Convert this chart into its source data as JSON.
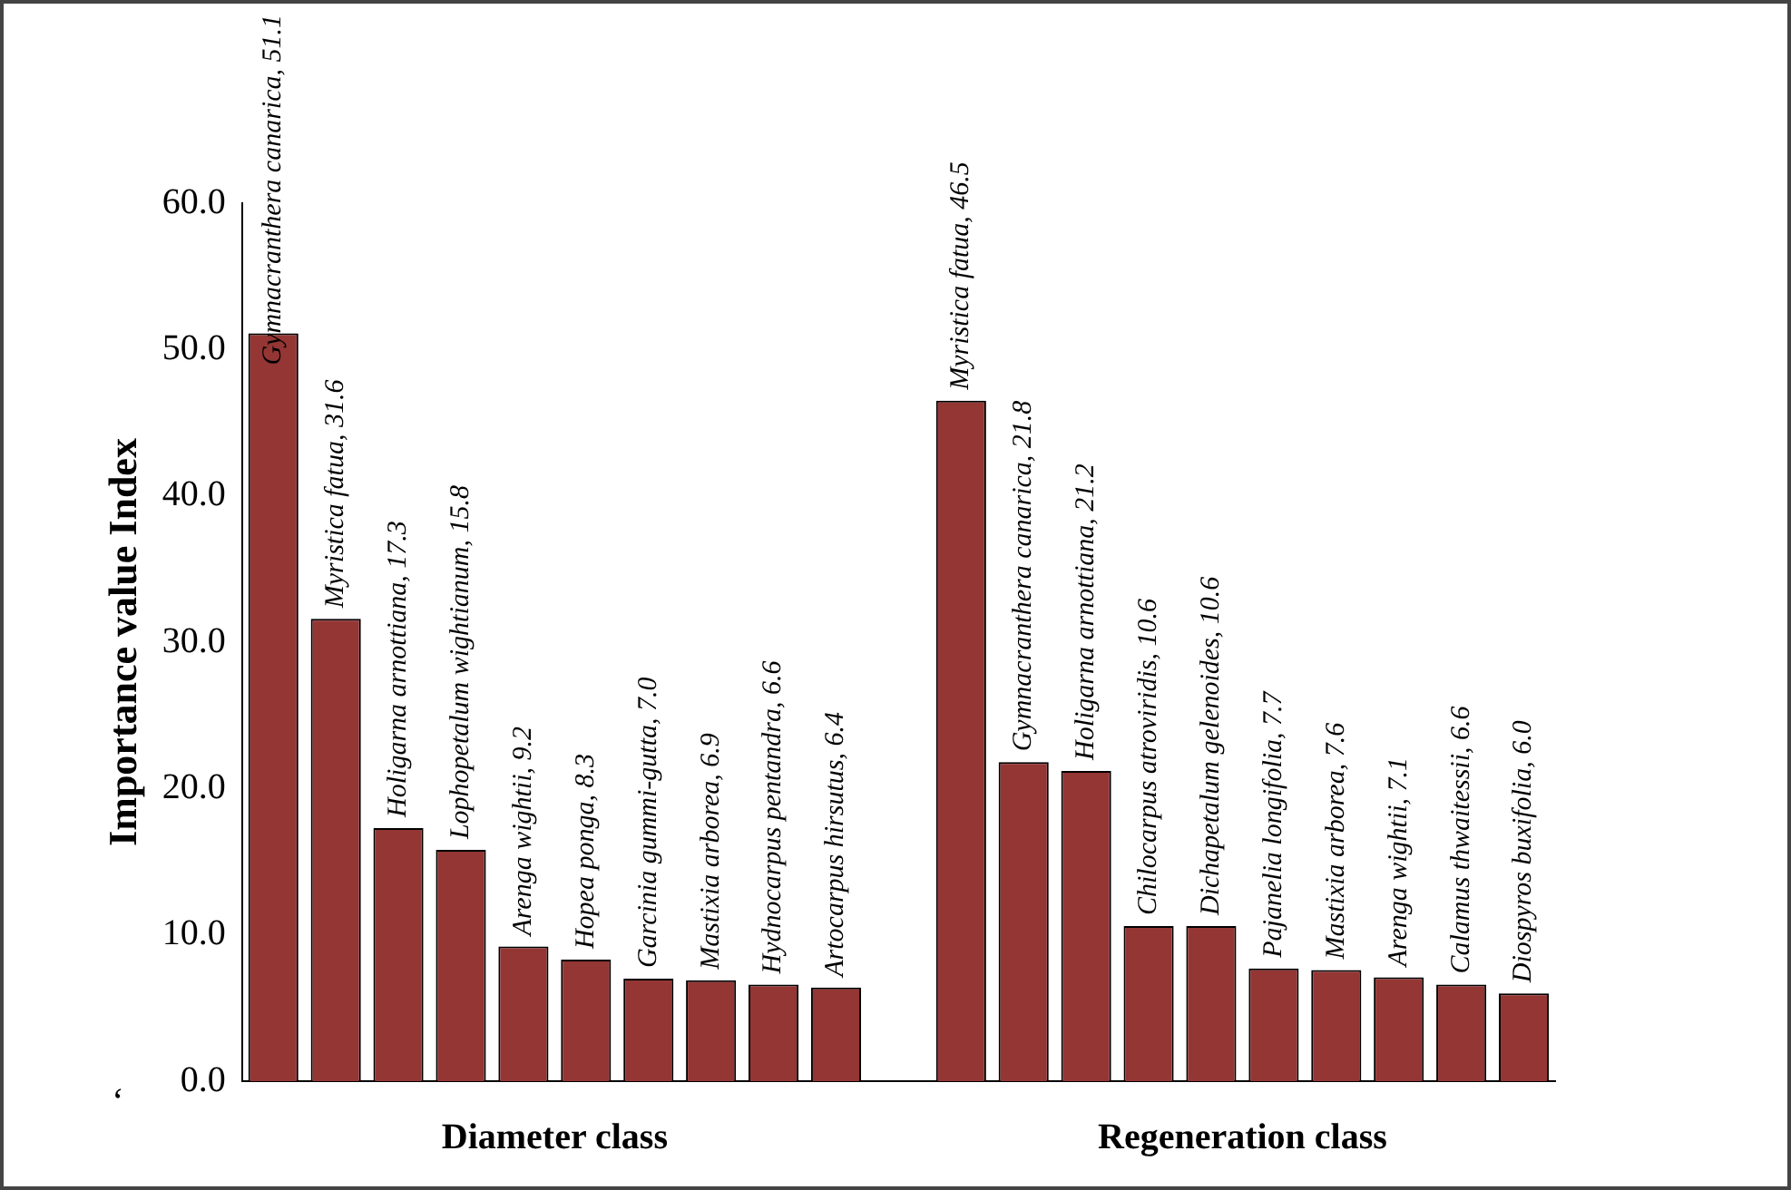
{
  "chart_data": {
    "type": "bar",
    "ylabel": "Importance value Index",
    "categories": [
      null,
      null,
      null,
      null,
      null,
      null,
      null,
      null,
      null,
      null,
      null,
      null,
      null,
      null,
      null,
      null,
      null,
      null,
      null,
      null,
      null
    ],
    "values": [
      51.1,
      31.6,
      17.3,
      15.8,
      9.2,
      8.3,
      7.0,
      6.9,
      6.6,
      6.4,
      null,
      46.5,
      21.8,
      21.2,
      10.6,
      10.6,
      7.7,
      7.6,
      7.1,
      6.6,
      6.0
    ],
    "value_labels": [
      "Gymnacranthera canarica, 51.1",
      "Myristica fatua, 31.6",
      "Holigarna arnottiana, 17.3",
      "Lophopetalum wightianum, 15.8",
      "Arenga wightii, 9.2",
      "Hopea ponga, 8.3",
      "Garcinia gummi-gutta, 7.0",
      "Mastixia arborea, 6.9",
      "Hydnocarpus pentandra, 6.6",
      "Artocarpus hirsutus, 6.4",
      null,
      "Myristica fatua, 46.5",
      "Gymnacranthera canarica, 21.8",
      "Holigarna arnottiana, 21.2",
      "Chilocarpus atroviridis, 10.6",
      "Dichapetalum gelenoides, 10.6",
      "Pajanelia longifolia, 7.7",
      "Mastixia arborea, 7.6",
      "Arenga wightii, 7.1",
      "Calamus thwaitessii, 6.6",
      "Diospyros buxifolia, 6.0"
    ],
    "color": "#943634",
    "ylim": [
      0,
      60
    ],
    "yticks": [
      {
        "value": 0,
        "label": "0.0"
      },
      {
        "value": 10,
        "label": "10.0"
      },
      {
        "value": 20,
        "label": "20.0"
      },
      {
        "value": 30,
        "label": "30.0"
      },
      {
        "value": 40,
        "label": "40.0"
      },
      {
        "value": 50,
        "label": "50.0"
      },
      {
        "value": 60,
        "label": "60.0"
      }
    ],
    "annotations": [
      "Diameter class",
      "Regeneration class",
      "‘"
    ]
  }
}
